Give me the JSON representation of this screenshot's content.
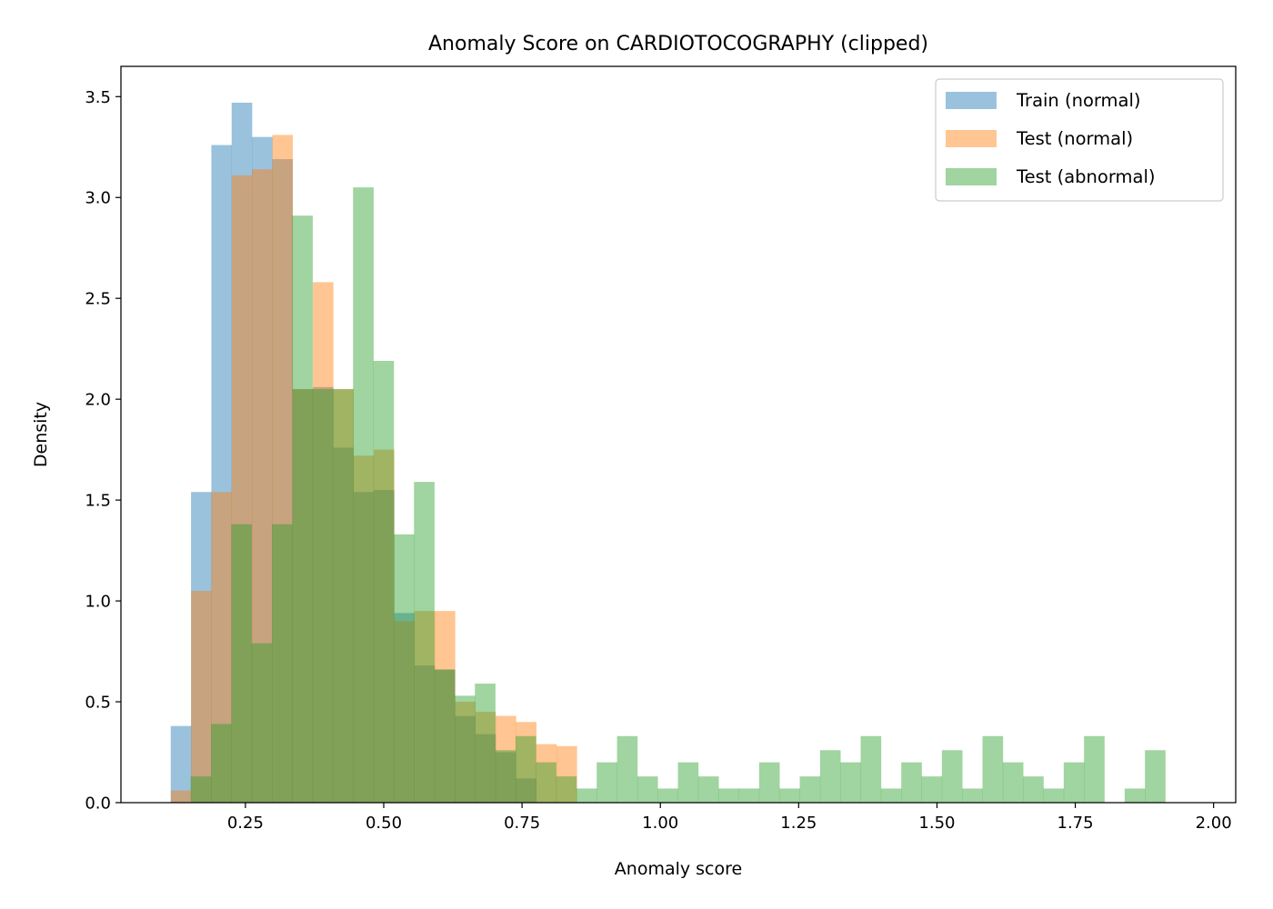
{
  "chart_data": {
    "type": "histogram",
    "title": "Anomaly Score on CARDIOTOCOGRAPHY (clipped)",
    "xlabel": "Anomaly score",
    "ylabel": "Density",
    "xlim": [
      0.025,
      2.04
    ],
    "ylim": [
      0,
      3.65
    ],
    "xticks": [
      "0.25",
      "0.50",
      "0.75",
      "1.00",
      "1.25",
      "1.50",
      "1.75",
      "2.00"
    ],
    "yticks": [
      "0.0",
      "0.5",
      "1.0",
      "1.5",
      "2.0",
      "2.5",
      "3.0",
      "3.5"
    ],
    "grid": false,
    "legend_position": "top-right",
    "series": [
      {
        "name": "Train (normal)",
        "color": "#1f77b4",
        "opacity": 0.45,
        "bin_start": 0.115,
        "bin_width": 0.0367,
        "values": [
          0.38,
          1.54,
          3.26,
          3.47,
          3.3,
          3.19,
          2.05,
          2.06,
          1.76,
          1.54,
          1.55,
          0.94,
          0.68,
          0.66,
          0.43,
          0.34,
          0.25,
          0.12
        ]
      },
      {
        "name": "Test (normal)",
        "color": "#ff7f0e",
        "opacity": 0.45,
        "bin_start": 0.115,
        "bin_width": 0.0367,
        "values": [
          0.06,
          1.05,
          1.54,
          3.11,
          3.14,
          3.31,
          2.05,
          2.58,
          2.05,
          1.72,
          1.75,
          0.9,
          0.95,
          0.95,
          0.5,
          0.45,
          0.43,
          0.4,
          0.29,
          0.28
        ]
      },
      {
        "name": "Test (abnormal)",
        "color": "#2ca02c",
        "opacity": 0.45,
        "bin_start": 0.151,
        "bin_width": 0.0367,
        "values": [
          0.13,
          0.39,
          1.38,
          0.79,
          1.38,
          2.91,
          2.05,
          2.05,
          3.05,
          2.19,
          1.33,
          1.59,
          0.66,
          0.53,
          0.59,
          0.26,
          0.33,
          0.2,
          0.13,
          0.07,
          0.2,
          0.33,
          0.13,
          0.07,
          0.2,
          0.13,
          0.07,
          0.07,
          0.2,
          0.07,
          0.13,
          0.26,
          0.2,
          0.33,
          0.07,
          0.2,
          0.13,
          0.26,
          0.07,
          0.33,
          0.2,
          0.13,
          0.07,
          0.2,
          0.33,
          0.0,
          0.07,
          0.26
        ]
      }
    ]
  }
}
